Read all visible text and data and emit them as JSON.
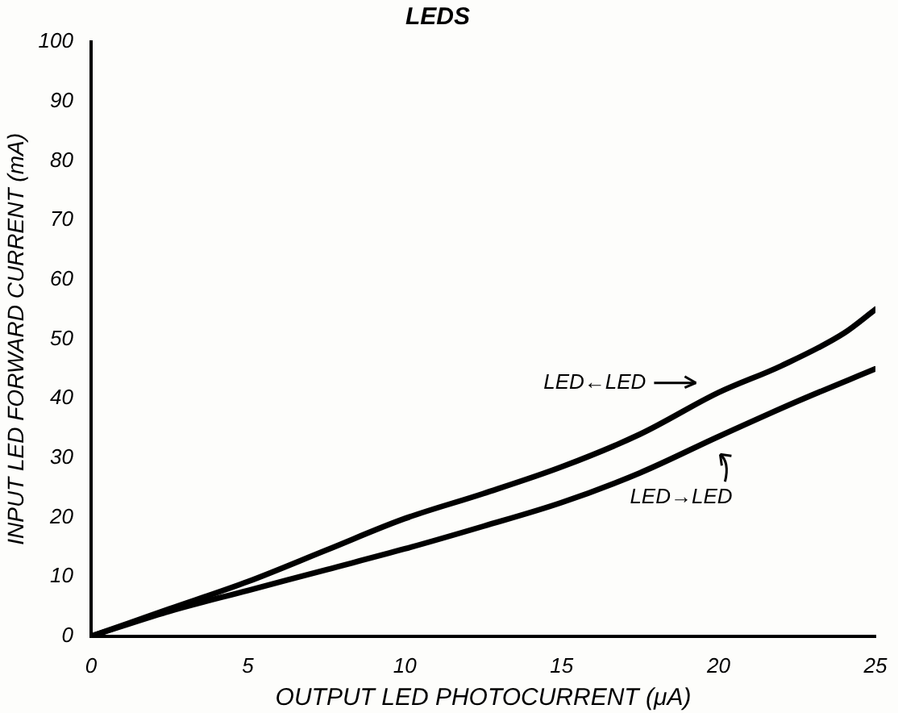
{
  "chart_data": {
    "type": "line",
    "title": "LEDS",
    "xlabel": "OUTPUT LED PHOTOCURRENT (μA)",
    "ylabel": "INPUT LED FORWARD CURRENT (mA)",
    "xlim": [
      0,
      25
    ],
    "xticks": [
      0,
      5,
      10,
      15,
      20,
      25
    ],
    "ylim": [
      0,
      100
    ],
    "yticks": [
      0,
      10,
      20,
      30,
      40,
      50,
      60,
      70,
      80,
      90,
      100
    ],
    "grid": false,
    "marker": "none",
    "line_style": "solid",
    "series": [
      {
        "name": "LED←LED",
        "color": "#000000",
        "x": [
          0,
          2.5,
          5,
          7.5,
          10,
          12.5,
          15,
          17.5,
          20,
          22,
          24,
          25
        ],
        "values": [
          0,
          4.6,
          9.2,
          14.5,
          19.8,
          24,
          28.5,
          34,
          41,
          45.5,
          51,
          55
        ]
      },
      {
        "name": "LED→LED",
        "color": "#000000",
        "x": [
          0,
          2.5,
          5,
          7.5,
          10,
          12.5,
          15,
          17.5,
          20,
          22.5,
          25
        ],
        "values": [
          0,
          4.2,
          7.7,
          11.2,
          14.7,
          18.5,
          22.5,
          27.5,
          33.6,
          39.5,
          45
        ]
      }
    ]
  }
}
